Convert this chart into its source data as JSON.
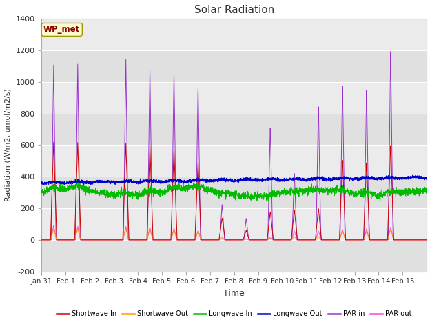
{
  "title": "Solar Radiation",
  "xlabel": "Time",
  "ylabel": "Radiation (W/m2, umol/m2/s)",
  "ylim": [
    -200,
    1400
  ],
  "yticks": [
    -200,
    0,
    200,
    400,
    600,
    800,
    1000,
    1200,
    1400
  ],
  "xtick_labels": [
    "Jan 31",
    "Feb 1",
    "Feb 2",
    "Feb 3",
    "Feb 4",
    "Feb 5",
    "Feb 6",
    "Feb 7",
    "Feb 8",
    "Feb 9",
    "Feb 10",
    "Feb 11",
    "Feb 12",
    "Feb 13",
    "Feb 14",
    "Feb 15"
  ],
  "watermark": "WP_met",
  "colors": {
    "shortwave_in": "#cc0000",
    "shortwave_out": "#ff9900",
    "longwave_in": "#00bb00",
    "longwave_out": "#0000cc",
    "par_in": "#9933cc",
    "par_out": "#ff44cc"
  },
  "legend": [
    {
      "label": "Shortwave In",
      "color": "#cc0000"
    },
    {
      "label": "Shortwave Out",
      "color": "#ff9900"
    },
    {
      "label": "Longwave In",
      "color": "#00bb00"
    },
    {
      "label": "Longwave Out",
      "color": "#0000cc"
    },
    {
      "label": "PAR in",
      "color": "#9933cc"
    },
    {
      "label": "PAR out",
      "color": "#ff44cc"
    }
  ],
  "fig_bg": "#ffffff",
  "plot_bg": "#e8e8e8"
}
